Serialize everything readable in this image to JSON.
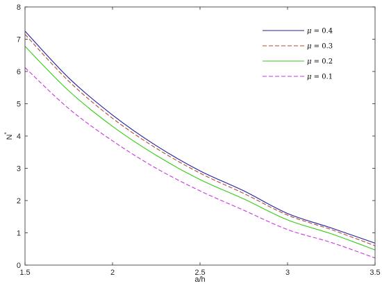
{
  "chart_data": {
    "type": "line",
    "xlabel": "a/h",
    "ylabel": "N",
    "ylabel_superscript": "*",
    "xlim": [
      1.5,
      3.5
    ],
    "ylim": [
      0,
      8
    ],
    "xticks": [
      "1.5",
      "2",
      "2.5",
      "3",
      "3.5"
    ],
    "yticks": [
      "0",
      "1",
      "2",
      "3",
      "4",
      "5",
      "6",
      "7",
      "8"
    ],
    "grid": false,
    "legend_position": "top-right",
    "series": [
      {
        "name": "μ = 0.4",
        "legend_symbol": "μ",
        "legend_value": " = 0.4",
        "color": "#1f1f9e",
        "dash": "solid",
        "x": [
          1.5,
          1.75,
          2.0,
          2.25,
          2.5,
          2.75,
          3.0,
          3.25,
          3.5
        ],
        "y": [
          7.25,
          5.8,
          4.65,
          3.7,
          2.92,
          2.3,
          1.6,
          1.15,
          0.68
        ]
      },
      {
        "name": "μ = 0.3",
        "legend_symbol": "μ",
        "legend_value": " = 0.3",
        "color": "#b5483a",
        "dash": "dashed",
        "x": [
          1.5,
          1.75,
          2.0,
          2.25,
          2.5,
          2.75,
          3.0,
          3.25,
          3.5
        ],
        "y": [
          7.15,
          5.7,
          4.55,
          3.62,
          2.85,
          2.22,
          1.55,
          1.1,
          0.6
        ]
      },
      {
        "name": "μ = 0.2",
        "legend_symbol": "μ",
        "legend_value": " = 0.2",
        "color": "#33cc11",
        "dash": "solid",
        "x": [
          1.5,
          1.75,
          2.0,
          2.25,
          2.5,
          2.75,
          3.0,
          3.25,
          3.5
        ],
        "y": [
          6.78,
          5.4,
          4.3,
          3.4,
          2.65,
          2.05,
          1.4,
          0.97,
          0.47
        ]
      },
      {
        "name": "μ = 0.1",
        "legend_symbol": "μ",
        "legend_value": " = 0.1",
        "color": "#c935e0",
        "dash": "dashed",
        "x": [
          1.5,
          1.75,
          2.0,
          2.25,
          2.5,
          2.75,
          3.0,
          3.25,
          3.5
        ],
        "y": [
          6.12,
          4.85,
          3.85,
          3.0,
          2.3,
          1.7,
          1.1,
          0.7,
          0.22
        ]
      }
    ]
  }
}
